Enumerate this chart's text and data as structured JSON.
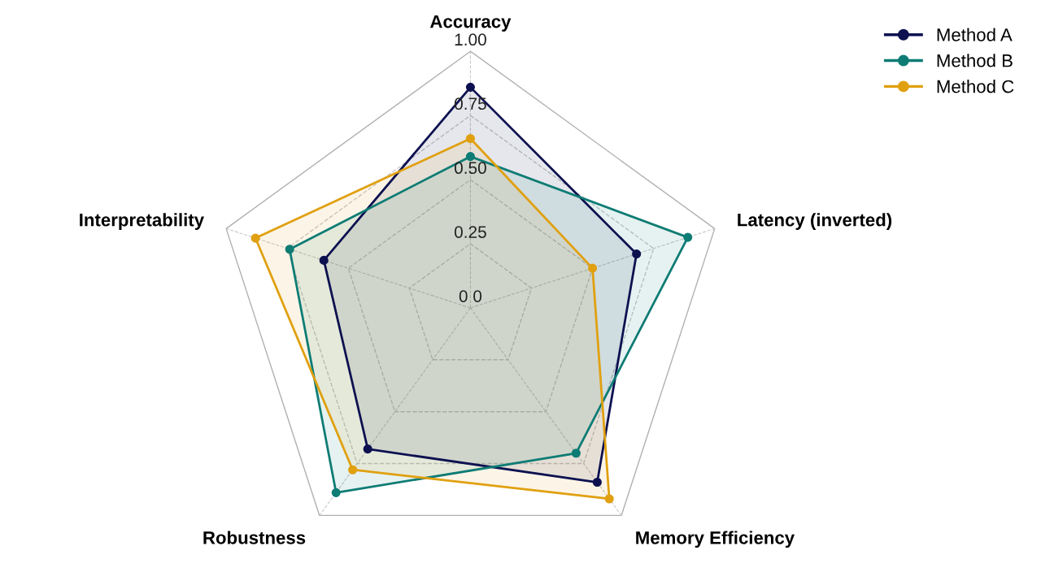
{
  "chart_data": {
    "type": "radar",
    "categories": [
      "Accuracy",
      "Latency (inverted)",
      "Memory Efficiency",
      "Robustness",
      "Interpretability"
    ],
    "series": [
      {
        "name": "Method A",
        "color": "#0d1150",
        "values": [
          0.86,
          0.68,
          0.84,
          0.68,
          0.6
        ]
      },
      {
        "name": "Method B",
        "color": "#0e7c74",
        "values": [
          0.59,
          0.89,
          0.7,
          0.89,
          0.74
        ]
      },
      {
        "name": "Method C",
        "color": "#e0a010",
        "values": [
          0.66,
          0.5,
          0.92,
          0.78,
          0.88
        ]
      }
    ],
    "ylim": [
      0,
      1
    ],
    "yticks": [
      {
        "value": 0,
        "label": "0 0"
      },
      {
        "value": 0.25,
        "label": "0.25"
      },
      {
        "value": 0.5,
        "label": "0.50"
      },
      {
        "value": 0.75,
        "label": "0.75"
      },
      {
        "value": 1,
        "label": "1.00"
      }
    ],
    "grid": true,
    "legend": "top right",
    "marker": "circle",
    "line_style": "solid"
  }
}
